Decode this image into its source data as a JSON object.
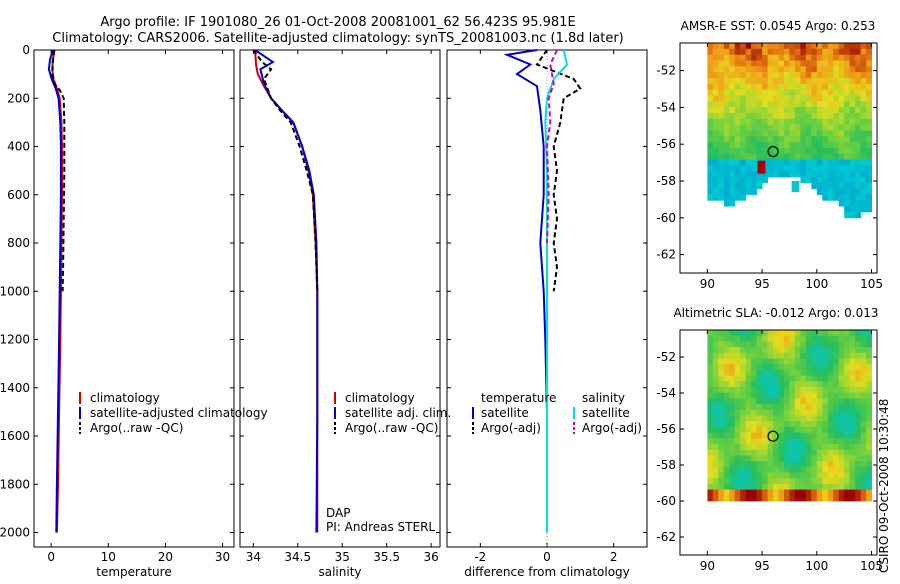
{
  "title": {
    "line1": "Argo profile: IF 1901080_26 01-Oct-2008 20081001_62 56.423S 95.981E",
    "line2": "Climatology: CARS2006. Satellite-adjusted climatology: synTS_20081003.nc (1.8d later)"
  },
  "side_text": "CSIRO 09-Oct-2008 10:30:48",
  "colors": {
    "clim": "#cc0000",
    "sat": "#0000cc",
    "argo": "#000000",
    "satsal": "#00e0e0",
    "argosal": "#cc00cc"
  },
  "chart_data": [
    {
      "id": "temperature",
      "type": "line",
      "xlabel": "temperature",
      "ylabel": "",
      "xlim": [
        -3,
        32
      ],
      "ylim": [
        2060,
        0
      ],
      "xticks": [
        "0",
        "10",
        "20",
        "30"
      ],
      "xtick_values": [
        0,
        10,
        20,
        30
      ],
      "yticks": [
        "0",
        "200",
        "400",
        "600",
        "800",
        "1000",
        "1200",
        "1400",
        "1600",
        "1800",
        "2000"
      ],
      "ytick_values": [
        0,
        200,
        400,
        600,
        800,
        1000,
        1200,
        1400,
        1600,
        1800,
        2000
      ],
      "legend": [
        "climatology",
        "satellite-adjusted climatology",
        "Argo(..raw -QC)"
      ],
      "series": [
        {
          "name": "climatology",
          "color": "clim",
          "dash": false,
          "x": [
            0.6,
            0.3,
            0.2,
            0.4,
            1.0,
            1.5,
            1.8,
            1.9,
            1.9,
            1.8,
            1.7,
            1.6,
            1.4,
            1.2,
            1.0
          ],
          "y": [
            0,
            40,
            80,
            120,
            160,
            200,
            300,
            400,
            600,
            800,
            1000,
            1200,
            1500,
            1800,
            2000
          ]
        },
        {
          "name": "satellite-adjusted climatology",
          "color": "sat",
          "dash": false,
          "x": [
            0.3,
            -0.2,
            -0.4,
            0.1,
            0.8,
            1.3,
            1.6,
            1.7,
            1.7,
            1.6,
            1.5,
            1.4,
            1.2,
            1.0,
            0.9
          ],
          "y": [
            0,
            40,
            80,
            120,
            160,
            200,
            300,
            400,
            600,
            800,
            1000,
            1200,
            1500,
            1800,
            2000
          ]
        },
        {
          "name": "Argo(..raw -QC)",
          "color": "argo",
          "dash": true,
          "x": [
            0.5,
            0.3,
            0.2,
            0.6,
            1.6,
            2.2,
            2.3,
            2.3,
            2.2,
            2.1,
            2.0
          ],
          "y": [
            0,
            40,
            100,
            140,
            170,
            200,
            300,
            500,
            700,
            900,
            1000
          ]
        }
      ]
    },
    {
      "id": "salinity",
      "type": "line",
      "xlabel": "salinity",
      "xlim": [
        33.85,
        36.1
      ],
      "ylim": [
        2060,
        0
      ],
      "xticks": [
        "34",
        "34.5",
        "35",
        "35.5",
        "36"
      ],
      "xtick_values": [
        34,
        34.5,
        35,
        35.5,
        36
      ],
      "legend": [
        "climatology",
        "satellite adj. clim.",
        "Argo(..raw -QC)"
      ],
      "annotations": [
        "DAP",
        "PI: Andreas STERL"
      ],
      "series": [
        {
          "name": "climatology",
          "color": "clim",
          "dash": false,
          "x": [
            34.02,
            34.03,
            34.05,
            34.12,
            34.2,
            34.32,
            34.45,
            34.55,
            34.62,
            34.67,
            34.7,
            34.72,
            34.72,
            34.72
          ],
          "y": [
            0,
            60,
            100,
            150,
            200,
            250,
            300,
            400,
            500,
            600,
            800,
            1000,
            1500,
            2000
          ]
        },
        {
          "name": "satellite adj. clim.",
          "color": "sat",
          "dash": false,
          "x": [
            34.02,
            34.1,
            34.22,
            34.08,
            34.12,
            34.2,
            34.32,
            34.45,
            34.55,
            34.63,
            34.68,
            34.71,
            34.72,
            34.72,
            34.71
          ],
          "y": [
            0,
            20,
            50,
            80,
            140,
            200,
            250,
            300,
            400,
            500,
            600,
            800,
            1000,
            1500,
            2000
          ]
        },
        {
          "name": "Argo(..raw -QC)",
          "color": "argo",
          "dash": true,
          "x": [
            34.0,
            34.1,
            34.2,
            34.12,
            34.2,
            34.3,
            34.42,
            34.52,
            34.6,
            34.67,
            34.7,
            34.72
          ],
          "y": [
            0,
            50,
            80,
            120,
            200,
            250,
            300,
            400,
            500,
            600,
            800,
            1000
          ]
        }
      ]
    },
    {
      "id": "difference",
      "type": "line",
      "xlabel": "difference from climatology",
      "xlim": [
        -3,
        3
      ],
      "ylim": [
        2060,
        0
      ],
      "xticks": [
        "-2",
        "0",
        "2"
      ],
      "xtick_values": [
        -2,
        0,
        2
      ],
      "legend_left": [
        "temperature",
        "satellite",
        "Argo(-adj)"
      ],
      "legend_right": [
        "salinity",
        "satellite",
        "Argo(-adj)"
      ],
      "series": [
        {
          "name": "temperature satellite",
          "color": "sat",
          "dash": false,
          "x": [
            -0.3,
            -1.2,
            -0.5,
            -0.9,
            -0.3,
            -0.2,
            -0.1,
            -0.1,
            -0.2,
            -0.1,
            -0.05,
            0.0,
            0.0
          ],
          "y": [
            0,
            20,
            60,
            100,
            150,
            250,
            400,
            600,
            800,
            1000,
            1200,
            1500,
            2000
          ]
        },
        {
          "name": "temperature Argo(-adj)",
          "color": "argo",
          "dash": true,
          "x": [
            0.0,
            -0.3,
            0.8,
            1.0,
            0.5,
            0.4,
            0.2,
            0.3,
            0.2,
            0.3,
            0.2,
            0.3,
            0.2
          ],
          "y": [
            0,
            60,
            120,
            160,
            200,
            300,
            400,
            500,
            600,
            700,
            800,
            900,
            1000
          ]
        },
        {
          "name": "salinity satellite",
          "color": "satsal",
          "dash": false,
          "x": [
            0.5,
            0.6,
            0.2,
            0.0,
            -0.05,
            0.0,
            0.0,
            0.0,
            0.0
          ],
          "y": [
            0,
            60,
            120,
            200,
            300,
            500,
            800,
            1200,
            2000
          ]
        },
        {
          "name": "salinity Argo(-adj)",
          "color": "argosal",
          "dash": true,
          "x": [
            0.3,
            0.1,
            0.2,
            0.05,
            0.1,
            0.0,
            0.05,
            0.0
          ],
          "y": [
            0,
            60,
            140,
            200,
            300,
            400,
            600,
            800
          ]
        }
      ]
    },
    {
      "id": "sst_map",
      "type": "heatmap",
      "title": "AMSR-E SST: 0.0545 Argo: 0.253",
      "xlim": [
        87.5,
        105.5
      ],
      "ylim": [
        -63,
        -50.5
      ],
      "xticks": [
        "90",
        "95",
        "100",
        "105"
      ],
      "xtick_values": [
        90,
        95,
        100,
        105
      ],
      "yticks": [
        "-52",
        "-54",
        "-56",
        "-58",
        "-60",
        "-62"
      ],
      "ytick_values": [
        -52,
        -54,
        -56,
        -58,
        -60,
        -62
      ],
      "marker": {
        "lon": 96,
        "lat": -56.4
      }
    },
    {
      "id": "sla_map",
      "type": "heatmap",
      "title": "Altimetric SLA: -0.012 Argo: 0.013",
      "xlim": [
        87.5,
        105.5
      ],
      "ylim": [
        -63,
        -50.5
      ],
      "xticks": [
        "90",
        "95",
        "100",
        "105"
      ],
      "xtick_values": [
        90,
        95,
        100,
        105
      ],
      "yticks": [
        "-52",
        "-54",
        "-56",
        "-58",
        "-60",
        "-62"
      ],
      "ytick_values": [
        -52,
        -54,
        -56,
        -58,
        -60,
        -62
      ],
      "marker": {
        "lon": 96,
        "lat": -56.4
      }
    }
  ]
}
